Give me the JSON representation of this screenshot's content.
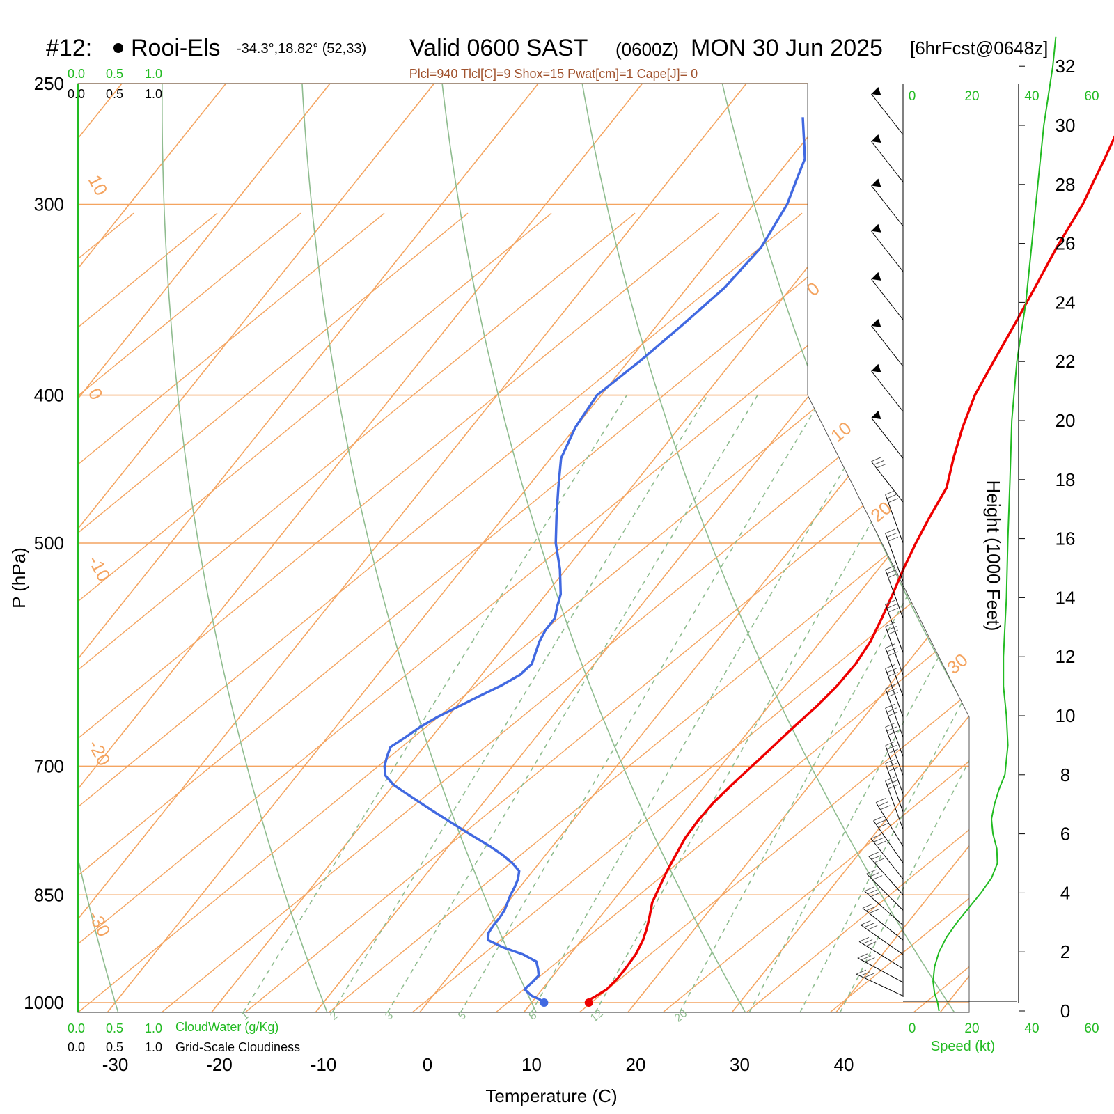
{
  "header": {
    "station_id": "#12:",
    "station_name": "Rooi-Els",
    "coords": "-34.3°,18.82° (52,33)",
    "valid": "Valid 0600 SAST",
    "zulu": "(0600Z)",
    "date": "MON 30 Jun 2025",
    "forecast": "[6hrFcst@0648z]"
  },
  "indices": "Plcl=940 Tlcl[C]=9 Shox=15 Pwat[cm]=1 Cape[J]= 0",
  "scales": {
    "cloud_top": [
      "0.0",
      "0.5",
      "1.0"
    ],
    "cloud_top_black": [
      "0.0",
      "0.5",
      "1.0"
    ],
    "cloudwater_label": "CloudWater (g/Kg)",
    "cloudiness_label": "Grid-Scale Cloudiness",
    "speed_label": "Speed (kt)",
    "speed_ticks": [
      "0",
      "20",
      "40",
      "60"
    ]
  },
  "colors": {
    "temperature": "#ee0000",
    "dewpoint": "#4169e1",
    "isotherm": "#f4a460",
    "dry_adiabat": "#8fbc8f",
    "mixing_ratio": "#8fbc8f",
    "speed": "#22bb22"
  },
  "chart_data": {
    "type": "line",
    "title": "Valid 0600 SAST (0600Z) MON 30 Jun 2025",
    "xlabel": "Temperature (C)",
    "ylabel": "P (hPa)",
    "y2label": "Height (1000 Feet)",
    "xlim": [
      -30,
      40
    ],
    "ylim": [
      1000,
      250
    ],
    "pressure_ticks": [
      250,
      300,
      400,
      500,
      700,
      850,
      1000
    ],
    "temperature_ticks": [
      -30,
      -20,
      -10,
      0,
      10,
      20,
      30,
      40
    ],
    "height_ticks": [
      0,
      2,
      4,
      6,
      8,
      10,
      12,
      14,
      16,
      18,
      20,
      22,
      24,
      26,
      28,
      30,
      32
    ],
    "mixing_ratio_labels": [
      "1",
      "2",
      "3",
      "5",
      "8",
      "12",
      "20"
    ],
    "isotherm_labels": [
      "10",
      "0",
      "-10",
      "-20",
      "-30",
      "0",
      "10",
      "20",
      "30"
    ],
    "series": [
      {
        "name": "Temperature",
        "p": [
          1000,
          995,
          990,
          980,
          965,
          950,
          930,
          910,
          895,
          880,
          860,
          840,
          820,
          800,
          780,
          760,
          740,
          720,
          700,
          680,
          660,
          640,
          620,
          600,
          580,
          560,
          540,
          520,
          500,
          480,
          460,
          440,
          420,
          400,
          380,
          360,
          340,
          320,
          300,
          290,
          280,
          270,
          263
        ],
        "t": [
          15.5,
          15.4,
          15.7,
          16.2,
          16.4,
          16.4,
          16.3,
          15.9,
          15.4,
          14.8,
          13.9,
          13.4,
          12.9,
          12.5,
          12.1,
          12.0,
          12.1,
          12.5,
          13.0,
          13.5,
          14.0,
          14.6,
          15.0,
          15.1,
          14.8,
          14.1,
          13.3,
          12.4,
          11.6,
          10.9,
          10.3,
          8.7,
          7.2,
          5.9,
          5.1,
          4.3,
          3.4,
          2.4,
          1.6,
          0.9,
          0.2,
          -0.6,
          -1.2
        ]
      },
      {
        "name": "Dewpoint",
        "p": [
          1000,
          995,
          990,
          980,
          970,
          960,
          950,
          940,
          930,
          920,
          910,
          900,
          890,
          880,
          870,
          860,
          850,
          840,
          830,
          820,
          810,
          800,
          790,
          780,
          770,
          760,
          750,
          740,
          730,
          720,
          710,
          700,
          690,
          680,
          670,
          660,
          650,
          640,
          630,
          620,
          610,
          600,
          590,
          580,
          570,
          560,
          550,
          540,
          520,
          500,
          480,
          460,
          440,
          420,
          400,
          380,
          360,
          340,
          320,
          300,
          290,
          280,
          263
        ],
        "t": [
          11.2,
          10.5,
          9.5,
          8.3,
          8.5,
          8.6,
          8.0,
          7.3,
          5.5,
          3.0,
          1.0,
          0.5,
          0.4,
          0.4,
          0.3,
          0.0,
          -0.3,
          -0.5,
          -0.8,
          -1.3,
          -2.6,
          -4.2,
          -6.0,
          -8.0,
          -10.0,
          -12.0,
          -14.0,
          -16.0,
          -18.0,
          -20.0,
          -21.5,
          -22.3,
          -22.8,
          -23.2,
          -22.5,
          -21.9,
          -21.0,
          -19.8,
          -18.6,
          -17.3,
          -16.3,
          -16.0,
          -16.5,
          -17.0,
          -17.3,
          -17.3,
          -18.0,
          -18.6,
          -20.6,
          -23.0,
          -25.0,
          -27.0,
          -29.0,
          -30.0,
          -30.4,
          -28.9,
          -27.6,
          -26.4,
          -26.0,
          -26.8,
          -27.7,
          -28.6,
          -32.0
        ]
      }
    ],
    "wind_speed": {
      "name": "Speed",
      "unit": "kt",
      "height_kft": [
        0,
        0.3,
        0.6,
        1,
        1.5,
        2,
        2.5,
        3,
        3.5,
        4,
        4.5,
        5,
        5.5,
        6,
        6.5,
        7,
        7.5,
        8,
        9,
        10,
        11,
        12,
        13,
        14,
        16,
        18,
        20,
        22,
        24,
        26,
        28,
        30,
        32,
        33
      ],
      "speed": [
        9,
        8.5,
        7.5,
        7,
        7.5,
        9,
        11.5,
        15,
        19,
        23,
        26.5,
        28.5,
        28.3,
        27,
        26.5,
        27.5,
        29,
        31,
        32,
        31.5,
        30.5,
        30.5,
        31,
        31.5,
        32,
        32.7,
        33.3,
        35,
        38,
        40,
        42,
        44,
        47,
        48
      ]
    },
    "wind_barbs_hpa": [
      270,
      290,
      310,
      332,
      357,
      383,
      410,
      440,
      470,
      500,
      530,
      560,
      590,
      610,
      630,
      650,
      670,
      690,
      710,
      730,
      750,
      770,
      790,
      810,
      830,
      850,
      870,
      890,
      910,
      930,
      950,
      970,
      990
    ]
  }
}
